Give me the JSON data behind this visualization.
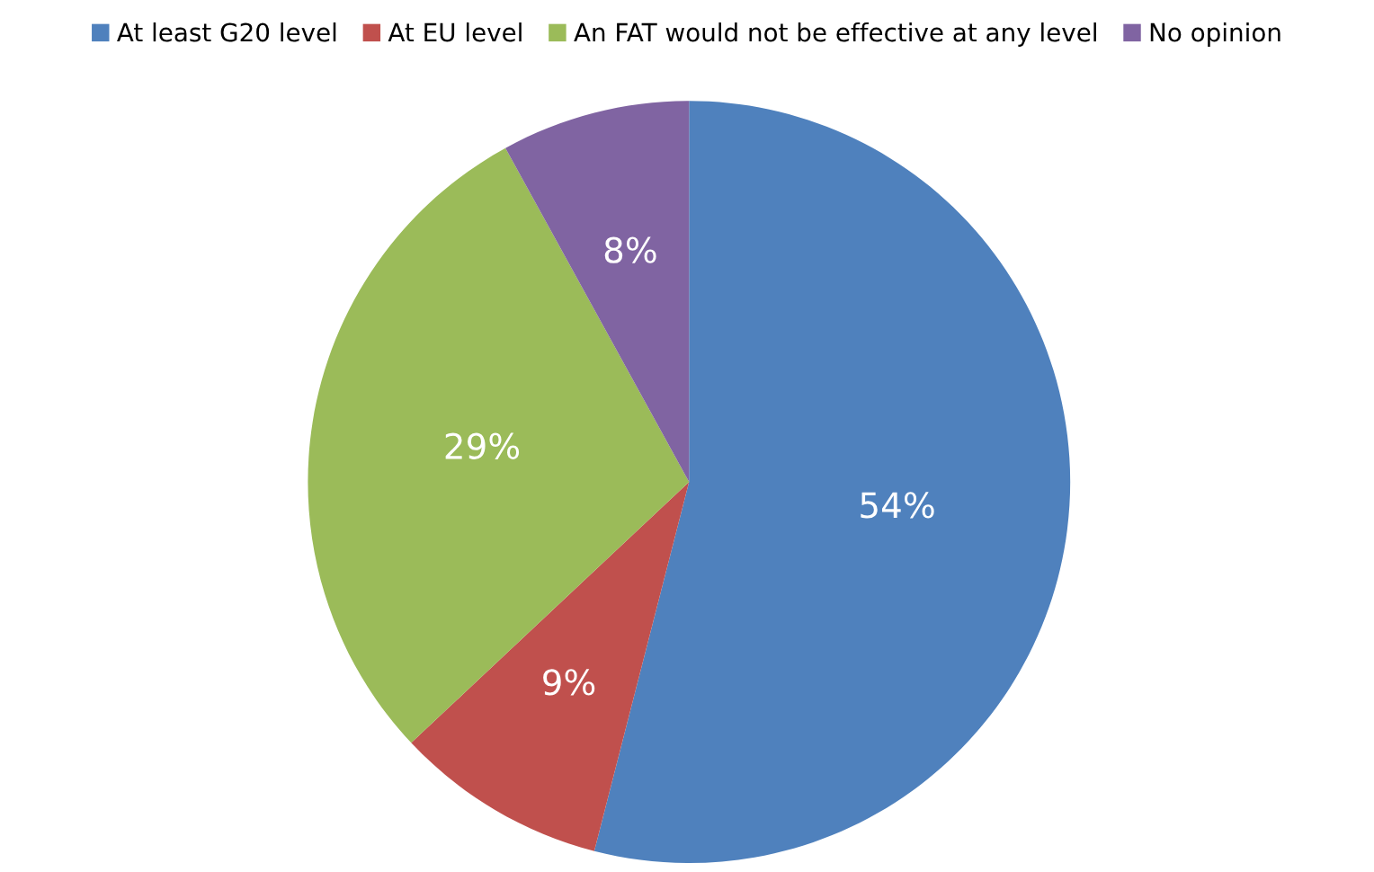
{
  "chart_data": {
    "type": "pie",
    "categories": [
      "At least G20 level",
      "At EU level",
      "An FAT would not be effective at any level",
      "No opinion"
    ],
    "values": [
      54,
      9,
      29,
      8
    ],
    "colors": [
      "#4f81bd",
      "#c0504d",
      "#9bbb59",
      "#8064a2"
    ],
    "value_labels": [
      "54%",
      "9%",
      "29%",
      "8%"
    ],
    "legend": "top"
  }
}
